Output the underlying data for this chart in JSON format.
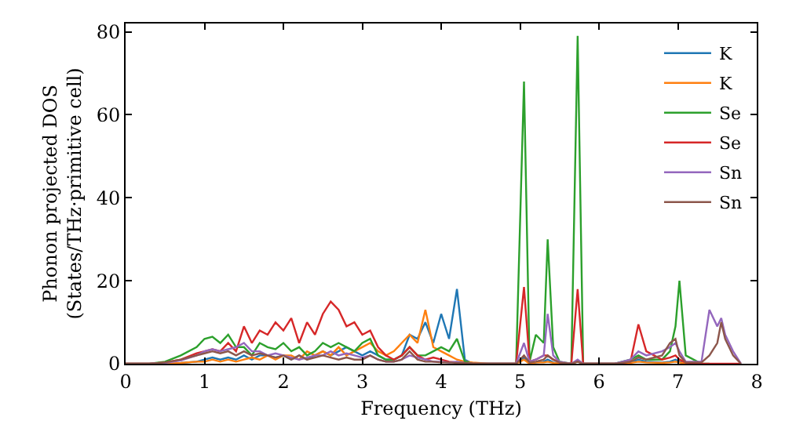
{
  "chart_data": {
    "type": "line",
    "xlabel": "Frequency (THz)",
    "ylabel": "Phonon projected DOS\n(States/THz·primitive cell)",
    "x": [
      0,
      0.3,
      0.5,
      0.7,
      0.9,
      1.0,
      1.1,
      1.2,
      1.3,
      1.4,
      1.5,
      1.6,
      1.7,
      1.8,
      1.9,
      2.0,
      2.1,
      2.2,
      2.3,
      2.4,
      2.5,
      2.6,
      2.7,
      2.8,
      2.9,
      3.0,
      3.1,
      3.2,
      3.3,
      3.4,
      3.5,
      3.6,
      3.7,
      3.8,
      3.9,
      4.0,
      4.1,
      4.2,
      4.3,
      4.4,
      4.6,
      4.95,
      5.05,
      5.12,
      5.2,
      5.3,
      5.35,
      5.42,
      5.5,
      5.65,
      5.73,
      5.8,
      6.2,
      6.4,
      6.5,
      6.6,
      6.8,
      6.9,
      6.97,
      7.02,
      7.1,
      7.3,
      7.4,
      7.5,
      7.55,
      7.6,
      7.7,
      7.8
    ],
    "series": [
      {
        "name": "K",
        "color": "#1f77b4",
        "values": [
          null,
          null,
          null,
          0.2,
          0.5,
          1,
          1.5,
          1,
          1.5,
          1,
          2,
          1,
          2,
          2,
          1.5,
          2,
          1,
          2,
          1,
          2,
          3,
          2,
          3,
          4,
          3,
          2,
          3,
          2,
          1,
          1,
          2,
          7,
          6,
          10,
          5,
          12,
          6,
          18,
          1,
          0,
          0,
          0,
          1.5,
          0,
          0.3,
          0.5,
          1,
          0.3,
          0,
          0,
          0.5,
          0,
          0,
          0.3,
          1,
          0.5,
          0.3,
          0.5,
          1,
          0.5,
          0,
          0,
          null,
          null,
          null,
          null,
          null,
          null
        ]
      },
      {
        "name": "K",
        "color": "#ff7f0e",
        "values": [
          0,
          0,
          0,
          0.2,
          0.5,
          0.5,
          1,
          0.5,
          1,
          0.5,
          1,
          1.5,
          1,
          2,
          1,
          2,
          2,
          1,
          3,
          2,
          3,
          2,
          4,
          2,
          3,
          4,
          5,
          3,
          2,
          3,
          5,
          7,
          5,
          13,
          4,
          3,
          2,
          1,
          0.5,
          0.3,
          0,
          0,
          1,
          0,
          0.3,
          0.3,
          0.5,
          0.2,
          0,
          0,
          0.5,
          0,
          0,
          0.2,
          0.5,
          0.3,
          0.2,
          0.3,
          0.5,
          0.3,
          0,
          0,
          null,
          null,
          null,
          null,
          null,
          null
        ]
      },
      {
        "name": "Se",
        "color": "#2ca02c",
        "values": [
          0,
          0,
          0.5,
          2,
          4,
          6,
          6.5,
          5,
          7,
          4,
          4,
          2,
          5,
          4,
          3.5,
          5,
          3,
          4,
          2,
          3,
          5,
          4,
          5,
          4,
          3,
          5,
          6,
          2,
          1,
          1,
          2,
          4,
          2,
          2,
          3,
          4,
          3,
          6,
          0.5,
          0,
          0,
          0,
          68,
          0.5,
          7,
          5,
          30,
          4,
          0.5,
          0,
          79,
          0,
          0,
          1,
          2,
          1,
          1,
          3,
          9,
          20,
          2,
          0,
          0,
          null,
          null,
          null,
          null,
          null
        ]
      },
      {
        "name": "Se",
        "color": "#d62728",
        "values": [
          0,
          0,
          0.3,
          1,
          2.5,
          3,
          3.5,
          3,
          5,
          3,
          9,
          5,
          8,
          7,
          10,
          8,
          11,
          5,
          10,
          7,
          12,
          15,
          13,
          9,
          10,
          7,
          8,
          4,
          2,
          1,
          2,
          4,
          2,
          1,
          1.5,
          1,
          0.5,
          0.3,
          0.1,
          0,
          0,
          0,
          18.5,
          0.5,
          1,
          2,
          2,
          1,
          0.3,
          0,
          18,
          0,
          0,
          0.5,
          9.5,
          3,
          1,
          1.5,
          2,
          1,
          0.3,
          0,
          0,
          0,
          0,
          0,
          0,
          0
        ]
      },
      {
        "name": "Sn",
        "color": "#9467bd",
        "values": [
          0,
          0,
          0.2,
          0.8,
          2,
          3,
          3.5,
          3,
          3.5,
          4,
          5,
          3,
          3,
          2,
          2.5,
          2,
          1.5,
          1,
          1.5,
          2,
          2,
          3,
          2,
          2.5,
          2,
          1.5,
          2,
          1,
          0.5,
          0.5,
          1,
          2,
          1.5,
          1,
          0.5,
          0.5,
          0.3,
          0.5,
          0.2,
          0,
          0,
          0,
          5,
          0.5,
          1,
          2,
          12,
          2,
          0.5,
          0,
          1,
          0,
          0,
          1,
          3,
          2,
          3,
          4,
          5,
          3,
          0.5,
          0.5,
          13,
          9,
          11,
          7,
          3,
          0
        ]
      },
      {
        "name": "Sn",
        "color": "#8c564b",
        "values": [
          0,
          0,
          0.3,
          1,
          2,
          2.5,
          3,
          2.5,
          3,
          2,
          3,
          2,
          2.5,
          2,
          1.5,
          2,
          1,
          2,
          1,
          1.5,
          2,
          1.5,
          1,
          1.5,
          1,
          1,
          2,
          1,
          0.5,
          0.5,
          1,
          3,
          1,
          0.5,
          0.5,
          0.3,
          0.3,
          0.2,
          0.2,
          0,
          0,
          0,
          2,
          0.3,
          0.5,
          1,
          2,
          1,
          0.3,
          0,
          0.5,
          0,
          0,
          0.5,
          1.5,
          1,
          2,
          5,
          6,
          2,
          0.3,
          0.3,
          2,
          5,
          10,
          6,
          2,
          0
        ]
      }
    ],
    "xlim": [
      0,
      8
    ],
    "xticks": [
      0,
      1,
      2,
      3,
      4,
      5,
      6,
      7,
      8
    ],
    "ylim": [
      0,
      82
    ],
    "yticks": [
      0,
      20,
      40,
      60,
      80
    ],
    "grid": false,
    "legend": "top right",
    "marker": "none",
    "line_style": "solid"
  }
}
